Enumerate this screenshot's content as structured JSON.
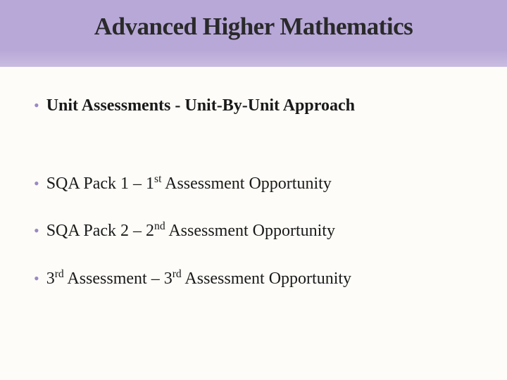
{
  "slide": {
    "title": "Advanced Higher Mathematics",
    "title_fontsize": 35,
    "title_color": "#2a2a2a",
    "header_band_color": "#b8a8d8",
    "header_band_gradient_end": "#c9bce0",
    "background_color": "#fdfcf8",
    "bullet_color": "#9b88c4",
    "text_color": "#1a1a1a",
    "bullets": [
      {
        "html": "Unit Assessments - Unit-By-Unit Approach",
        "bold": true,
        "gap_after": true
      },
      {
        "html": "SQA Pack 1 – 1<sup>st</sup> Assessment Opportunity",
        "bold": false,
        "gap_after": false
      },
      {
        "html": "SQA Pack 2 – 2<sup>nd</sup> Assessment Opportunity",
        "bold": false,
        "gap_after": false
      },
      {
        "html": "3<sup>rd</sup> Assessment – 3<sup>rd</sup> Assessment Opportunity",
        "bold": false,
        "gap_after": false
      }
    ],
    "body_fontsize": 24
  }
}
